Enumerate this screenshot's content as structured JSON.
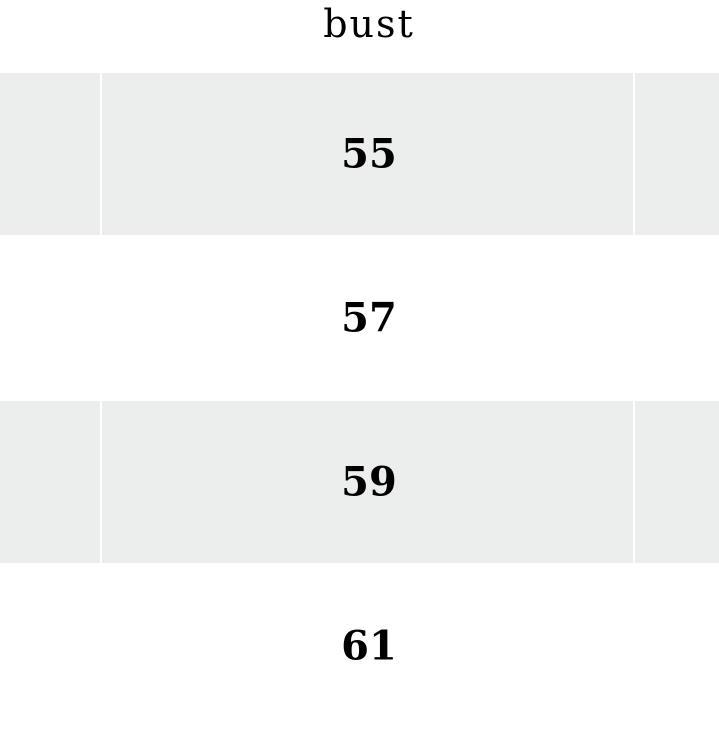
{
  "table": {
    "column_header": "bust",
    "rows": [
      "55",
      "57",
      "59",
      "61"
    ]
  },
  "colors": {
    "striped_row": "#eceeed",
    "background": "#ffffff"
  }
}
